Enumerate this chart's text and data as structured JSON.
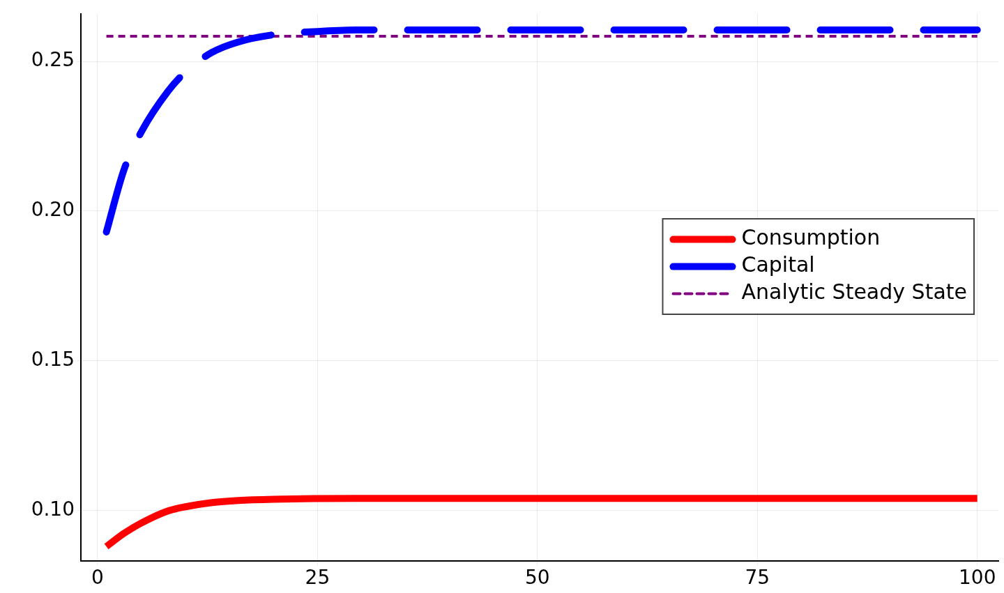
{
  "chart_data": {
    "type": "line",
    "xlim": [
      -1.9,
      102.4
    ],
    "ylim": [
      0.083,
      0.2659
    ],
    "xticks": [
      0,
      25,
      50,
      75,
      100
    ],
    "yticks": [
      {
        "value": 0.1,
        "label": "0.10"
      },
      {
        "value": 0.15,
        "label": "0.15"
      },
      {
        "value": 0.2,
        "label": "0.20"
      },
      {
        "value": 0.25,
        "label": "0.25"
      }
    ],
    "grid": true,
    "legend": "right",
    "marker": "none",
    "series": [
      {
        "name": "Consumption",
        "color": "#ff0000",
        "line_style": "solid",
        "x": [
          1,
          3,
          5,
          8,
          10,
          13,
          16,
          20,
          30,
          100
        ],
        "values": [
          0.0879,
          0.0923,
          0.0958,
          0.0998,
          0.1012,
          0.1026,
          0.1033,
          0.1037,
          0.104,
          0.104
        ]
      },
      {
        "name": "Capital",
        "color": "#0000ff",
        "line_style": "dashed",
        "x": [
          1,
          3,
          5,
          8,
          10,
          13,
          16,
          20,
          25,
          30,
          100
        ],
        "values": [
          0.193,
          0.2138,
          0.2266,
          0.24,
          0.2465,
          0.253,
          0.2565,
          0.2589,
          0.26,
          0.2605,
          0.2605
        ]
      },
      {
        "name": "Analytic Steady State",
        "color": "#800080",
        "line_style": "dotted",
        "x": [
          1,
          100
        ],
        "values": [
          0.2584,
          0.2584
        ]
      }
    ]
  }
}
